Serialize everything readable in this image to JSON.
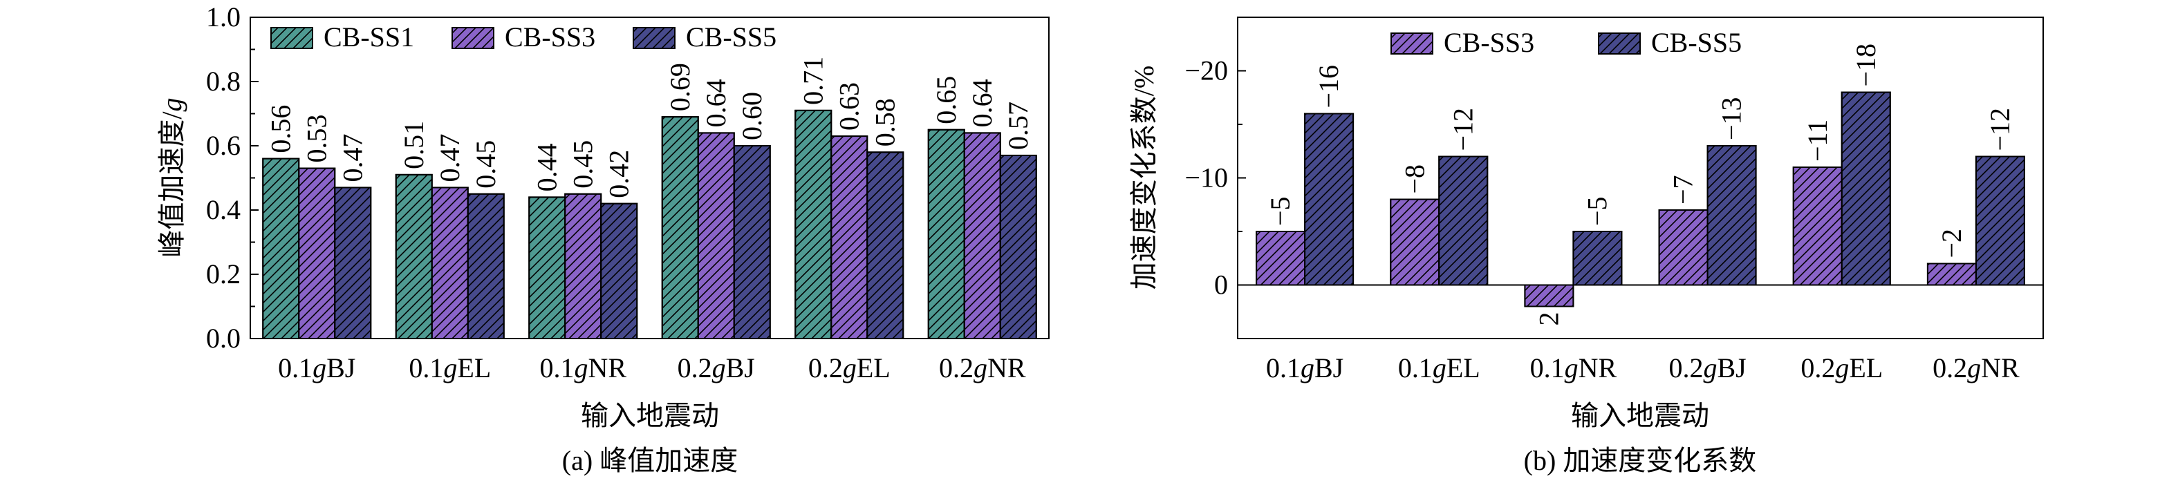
{
  "colors": {
    "CB-SS1": "#4f9a92",
    "CB-SS3": "#8a64c8",
    "CB-SS5": "#474a8c"
  },
  "chart_data": [
    {
      "type": "bar",
      "caption": "(a) 峰值加速度",
      "xlabel": "输入地震动",
      "ylabel": "峰值加速度/g",
      "ylabel_parts": [
        "峰值加速度/",
        "g"
      ],
      "ylim": [
        0.0,
        1.0
      ],
      "yticks": [
        "0.0",
        "0.2",
        "0.4",
        "0.6",
        "0.8",
        "1.0"
      ],
      "categories": [
        "0.1gBJ",
        "0.1gEL",
        "0.1gNR",
        "0.2gBJ",
        "0.2gEL",
        "0.2gNR"
      ],
      "category_parts": [
        [
          "0.1",
          "g",
          "BJ"
        ],
        [
          "0.1",
          "g",
          "EL"
        ],
        [
          "0.1",
          "g",
          "NR"
        ],
        [
          "0.2",
          "g",
          "BJ"
        ],
        [
          "0.2",
          "g",
          "EL"
        ],
        [
          "0.2",
          "g",
          "NR"
        ]
      ],
      "legend_position": "top-left",
      "series": [
        {
          "name": "CB-SS1",
          "values": [
            0.56,
            0.51,
            0.44,
            0.69,
            0.71,
            0.65
          ],
          "labels": [
            "0.56",
            "0.51",
            "0.44",
            "0.69",
            "0.71",
            "0.65"
          ]
        },
        {
          "name": "CB-SS3",
          "values": [
            0.53,
            0.47,
            0.45,
            0.64,
            0.63,
            0.64
          ],
          "labels": [
            "0.53",
            "0.47",
            "0.45",
            "0.64",
            "0.63",
            "0.64"
          ]
        },
        {
          "name": "CB-SS5",
          "values": [
            0.47,
            0.45,
            0.42,
            0.6,
            0.58,
            0.57
          ],
          "labels": [
            "0.47",
            "0.45",
            "0.42",
            "0.60",
            "0.58",
            "0.57"
          ]
        }
      ]
    },
    {
      "type": "bar",
      "caption": "(b) 加速度变化系数",
      "xlabel": "输入地震动",
      "ylabel": "加速度变化系数/%",
      "ylim": [
        5,
        -25
      ],
      "inverted_y": true,
      "yticks": [
        "0",
        "−10",
        "−20"
      ],
      "categories": [
        "0.1gBJ",
        "0.1gEL",
        "0.1gNR",
        "0.2gBJ",
        "0.2gEL",
        "0.2gNR"
      ],
      "category_parts": [
        [
          "0.1",
          "g",
          "BJ"
        ],
        [
          "0.1",
          "g",
          "EL"
        ],
        [
          "0.1",
          "g",
          "NR"
        ],
        [
          "0.2",
          "g",
          "BJ"
        ],
        [
          "0.2",
          "g",
          "EL"
        ],
        [
          "0.2",
          "g",
          "NR"
        ]
      ],
      "legend_position": "top-left",
      "series": [
        {
          "name": "CB-SS3",
          "values": [
            -5,
            -8,
            2,
            -7,
            -11,
            -2
          ],
          "labels": [
            "−5",
            "−8",
            "2",
            "−7",
            "−11",
            "−2"
          ]
        },
        {
          "name": "CB-SS5",
          "values": [
            -16,
            -12,
            -5,
            -13,
            -18,
            -12
          ],
          "labels": [
            "−16",
            "−12",
            "−5",
            "−13",
            "−18",
            "−12"
          ]
        }
      ]
    }
  ]
}
